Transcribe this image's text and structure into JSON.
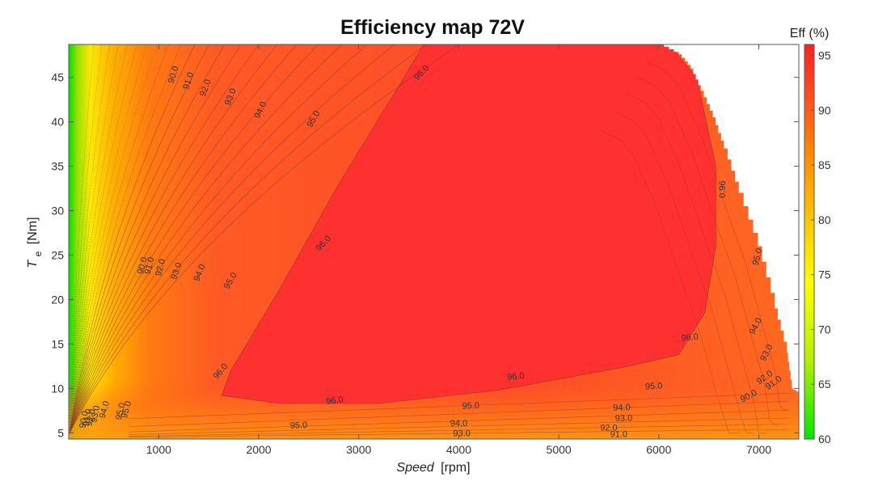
{
  "chart_data": {
    "type": "contour",
    "title": "Efficiency map 72V",
    "xlabel_italic": "Speed",
    "xlabel_unit": "[rpm]",
    "ylabel_main": "T",
    "ylabel_sub": "e",
    "ylabel_unit": "[Nm]",
    "xlim": [
      100,
      7400
    ],
    "ylim": [
      4.3,
      48.7
    ],
    "xticks": [
      1000,
      2000,
      3000,
      4000,
      5000,
      6000,
      7000
    ],
    "yticks": [
      5,
      10,
      15,
      20,
      25,
      30,
      35,
      40,
      45
    ],
    "colorbar": {
      "label": "Eff (%)",
      "range": [
        60,
        96
      ],
      "ticks": [
        60,
        65,
        70,
        75,
        80,
        85,
        90,
        95
      ],
      "colors": [
        "#00e600",
        "#b4f000",
        "#ffff00",
        "#ffc800",
        "#ff8c00",
        "#ff5020",
        "#ff2020"
      ]
    },
    "contour_levels": [
      90.0,
      91.0,
      92.0,
      93.0,
      94.0,
      95.0,
      96.0
    ],
    "contour_labels": [
      {
        "text": "90.0",
        "speed": 1150,
        "torque": 45.3,
        "angle": -72
      },
      {
        "text": "91.0",
        "speed": 1300,
        "torque": 44.6,
        "angle": -72
      },
      {
        "text": "92.0",
        "speed": 1470,
        "torque": 43.8,
        "angle": -70
      },
      {
        "text": "93.0",
        "speed": 1720,
        "torque": 42.8,
        "angle": -68
      },
      {
        "text": "94.0",
        "speed": 2020,
        "torque": 41.3,
        "angle": -65
      },
      {
        "text": "95.0",
        "speed": 2550,
        "torque": 40.3,
        "angle": -60
      },
      {
        "text": "96.0",
        "speed": 3630,
        "torque": 45.5,
        "angle": -45
      },
      {
        "text": "0.96",
        "speed": 6640,
        "torque": 32.4,
        "angle": -90
      },
      {
        "text": "90.0",
        "speed": 840,
        "torque": 23.8,
        "angle": -75
      },
      {
        "text": "91.0",
        "speed": 910,
        "torque": 23.8,
        "angle": -75
      },
      {
        "text": "92.0",
        "speed": 1020,
        "torque": 23.6,
        "angle": -75
      },
      {
        "text": "93.0",
        "speed": 1180,
        "torque": 23.2,
        "angle": -70
      },
      {
        "text": "94.0",
        "speed": 1410,
        "torque": 23.0,
        "angle": -68
      },
      {
        "text": "95.0",
        "speed": 1720,
        "torque": 22.1,
        "angle": -60
      },
      {
        "text": "96.0",
        "speed": 2650,
        "torque": 26.3,
        "angle": -45
      },
      {
        "text": "96.0",
        "speed": 1620,
        "torque": 11.9,
        "angle": -50
      },
      {
        "text": "96.0",
        "speed": 2760,
        "torque": 8.6,
        "angle": -8
      },
      {
        "text": "96.0",
        "speed": 4570,
        "torque": 11.3,
        "angle": -6
      },
      {
        "text": "96.0",
        "speed": 6310,
        "torque": 15.7,
        "angle": -6
      },
      {
        "text": "95.0",
        "speed": 680,
        "torque": 7.6,
        "angle": -75
      },
      {
        "text": "94.0",
        "speed": 460,
        "torque": 7.6,
        "angle": -75
      },
      {
        "text": "93.0",
        "speed": 370,
        "torque": 7.1,
        "angle": -78
      },
      {
        "text": "92.0",
        "speed": 325,
        "torque": 6.7,
        "angle": -78
      },
      {
        "text": "91.0",
        "speed": 290,
        "torque": 6.7,
        "angle": -80
      },
      {
        "text": "90.0",
        "speed": 255,
        "torque": 6.5,
        "angle": -80
      },
      {
        "text": "95.0",
        "speed": 2400,
        "torque": 5.8,
        "angle": -2
      },
      {
        "text": "95.0",
        "speed": 4120,
        "torque": 8.0,
        "angle": -2
      },
      {
        "text": "95.0",
        "speed": 5950,
        "torque": 10.2,
        "angle": -3
      },
      {
        "text": "94.0",
        "speed": 4000,
        "torque": 6.0,
        "angle": 0
      },
      {
        "text": "94.0",
        "speed": 5630,
        "torque": 7.8,
        "angle": -2
      },
      {
        "text": "94.0",
        "speed": 6970,
        "torque": 17.0,
        "angle": -62
      },
      {
        "text": "93.0",
        "speed": 4030,
        "torque": 4.9,
        "angle": 0
      },
      {
        "text": "93.0",
        "speed": 5650,
        "torque": 6.6,
        "angle": -2
      },
      {
        "text": "93.0",
        "speed": 7080,
        "torque": 14.0,
        "angle": -62
      },
      {
        "text": "92.0",
        "speed": 5500,
        "torque": 5.5,
        "angle": 0
      },
      {
        "text": "92.0",
        "speed": 7060,
        "torque": 11.2,
        "angle": -35
      },
      {
        "text": "91.0",
        "speed": 5600,
        "torque": 4.8,
        "angle": 0
      },
      {
        "text": "91.0",
        "speed": 7150,
        "torque": 10.6,
        "angle": -35
      },
      {
        "text": "90.0",
        "speed": 6900,
        "torque": 9.1,
        "angle": -28
      },
      {
        "text": "95.0",
        "speed": 6990,
        "torque": 24.8,
        "angle": -75
      },
      {
        "text": "95.0",
        "speed": 620,
        "torque": 7.4,
        "angle": -75
      }
    ],
    "max_torque_envelope": [
      {
        "speed": 6000,
        "torque": 48.7
      },
      {
        "speed": 6200,
        "torque": 47.6
      },
      {
        "speed": 6320,
        "torque": 46.0
      },
      {
        "speed": 6420,
        "torque": 43.5
      },
      {
        "speed": 6540,
        "torque": 40.5
      },
      {
        "speed": 6650,
        "torque": 37.0
      },
      {
        "speed": 6800,
        "torque": 32.0
      },
      {
        "speed": 6990,
        "torque": 26.0
      },
      {
        "speed": 7160,
        "torque": 19.0
      },
      {
        "speed": 7280,
        "torque": 14.0
      },
      {
        "speed": 7330,
        "torque": 10.0
      },
      {
        "speed": 7400,
        "torque": 9.5
      }
    ]
  }
}
